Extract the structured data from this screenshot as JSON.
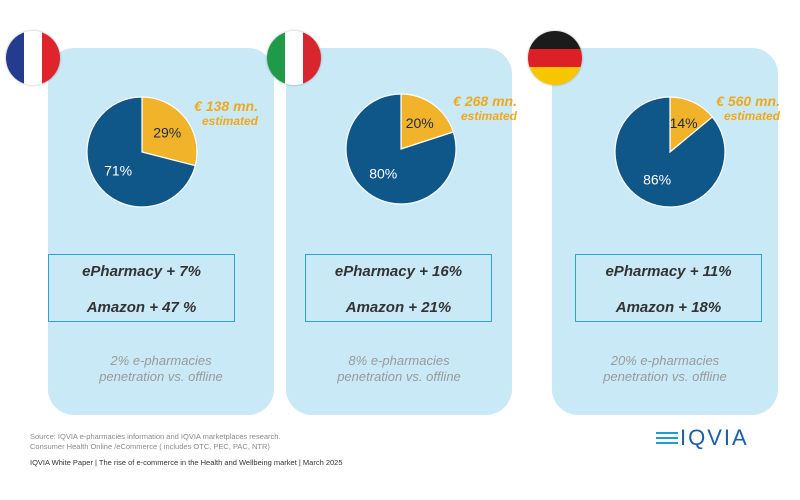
{
  "chart_data": [
    {
      "type": "pie",
      "country": "France",
      "slices": [
        {
          "label": "29%",
          "value": 29,
          "color": "#f0b32a"
        },
        {
          "label": "71%",
          "value": 71,
          "color": "#0f5689"
        }
      ],
      "annotation": {
        "amount": "€ 138 mn.",
        "note": "estimated"
      }
    },
    {
      "type": "pie",
      "country": "Italy",
      "slices": [
        {
          "label": "20%",
          "value": 20,
          "color": "#f0b32a"
        },
        {
          "label": "80%",
          "value": 80,
          "color": "#0f5689"
        }
      ],
      "annotation": {
        "amount": "€ 268 mn.",
        "note": "estimated"
      }
    },
    {
      "type": "pie",
      "country": "Germany",
      "slices": [
        {
          "label": "14%",
          "value": 14,
          "color": "#f0b32a"
        },
        {
          "label": "86%",
          "value": 86,
          "color": "#0f5689"
        }
      ],
      "annotation": {
        "amount": "€ 560 mn.",
        "note": "estimated"
      }
    }
  ],
  "cards": [
    {
      "growth1": "ePharmacy + 7%",
      "growth2": "Amazon + 47 %",
      "note1": "2% e-pharmacies",
      "note2": "penetration vs. offline"
    },
    {
      "growth1": "ePharmacy + 16%",
      "growth2": "Amazon + 21%",
      "note1": "8% e-pharmacies",
      "note2": "penetration vs. offline"
    },
    {
      "growth1": "ePharmacy + 11%",
      "growth2": "Amazon + 18%",
      "note1": "20% e-pharmacies",
      "note2": "penetration vs. offline"
    }
  ],
  "source": {
    "line1": "Source: IQVIA e-pharmacies information and IQVIA marketplaces research.",
    "line2": "Consumer Health Online /eCommerce ( includes OTC, PEC, PAC, NTR)"
  },
  "footer": "IQVIA White Paper  |  The rise of e-commerce in the Health and Wellbeing market  |  March 2025",
  "logo": "IQVIA",
  "colors": {
    "card": "#c9e9f7",
    "accent": "#f0a81c",
    "navy": "#0f5689",
    "box_border": "#2aa4d4"
  }
}
